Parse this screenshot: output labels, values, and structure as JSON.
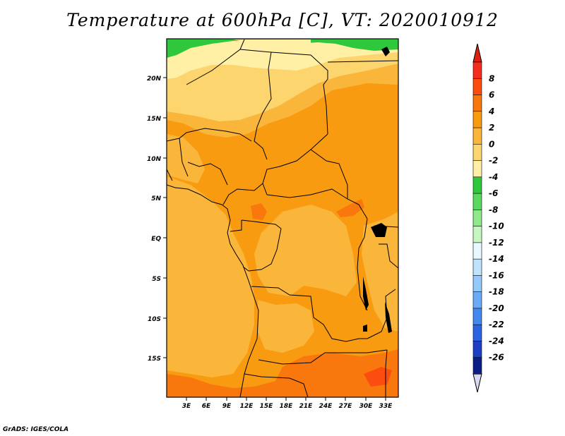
{
  "title": "Temperature at 600hPa [C], VT: 2020010912",
  "footer": "GrADS: IGES/COLA",
  "axes": {
    "lat_labels": [
      "20N",
      "15N",
      "10N",
      "5N",
      "EQ",
      "5S",
      "10S",
      "15S"
    ],
    "lon_labels": [
      "3E",
      "6E",
      "9E",
      "12E",
      "15E",
      "18E",
      "21E",
      "24E",
      "27E",
      "30E",
      "33E"
    ]
  },
  "colorbar": {
    "labels": [
      "8",
      "6",
      "4",
      "2",
      "0",
      "-2",
      "-4",
      "-6",
      "-8",
      "-10",
      "-12",
      "-14",
      "-16",
      "-18",
      "-20",
      "-22",
      "-24",
      "-26"
    ],
    "colors": [
      "#f52d1e",
      "#fa4d0f",
      "#f9780d",
      "#f89b10",
      "#fab63a",
      "#fdd56e",
      "#fff0a6",
      "#2fc83d",
      "#5ad85f",
      "#8fe98a",
      "#c6f7c0",
      "#e8f8ff",
      "#bfe3fd",
      "#94c9fb",
      "#6aaaf6",
      "#4288ef",
      "#2a64e2",
      "#1d3fc4",
      "#0c1e86"
    ],
    "top_arrow_color": "#db2112",
    "bottom_arrow_color": "#d8d8f3"
  }
}
